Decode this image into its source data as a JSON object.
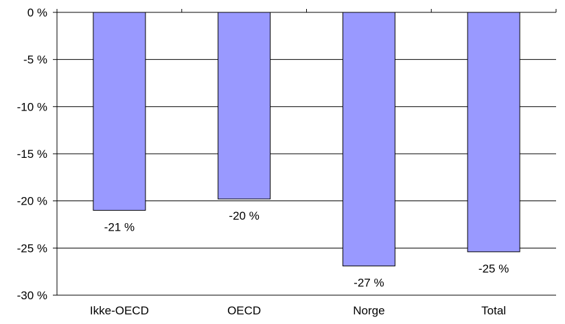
{
  "chart_data": {
    "type": "bar",
    "title": "",
    "xlabel": "",
    "ylabel": "",
    "categories": [
      "Ikke-OECD",
      "OECD",
      "Norge",
      "Total"
    ],
    "values": [
      -21,
      -19.8,
      -26.9,
      -25.4
    ],
    "data_labels": [
      "-21 %",
      "-20 %",
      "-27 %",
      "-25 %"
    ],
    "ylim": [
      -30,
      0
    ],
    "y_ticks": [
      0,
      -5,
      -10,
      -15,
      -20,
      -25,
      -30
    ],
    "y_tick_labels": [
      "0 %",
      "-5 %",
      "-10 %",
      "-15 %",
      "-20 %",
      "-25 %",
      "-30 %"
    ],
    "grid": "horizontal",
    "legend": "none",
    "colors": {
      "bar_fill": "#9999ff",
      "bar_stroke": "#000000",
      "grid": "#000000",
      "axis": "#000000"
    }
  }
}
